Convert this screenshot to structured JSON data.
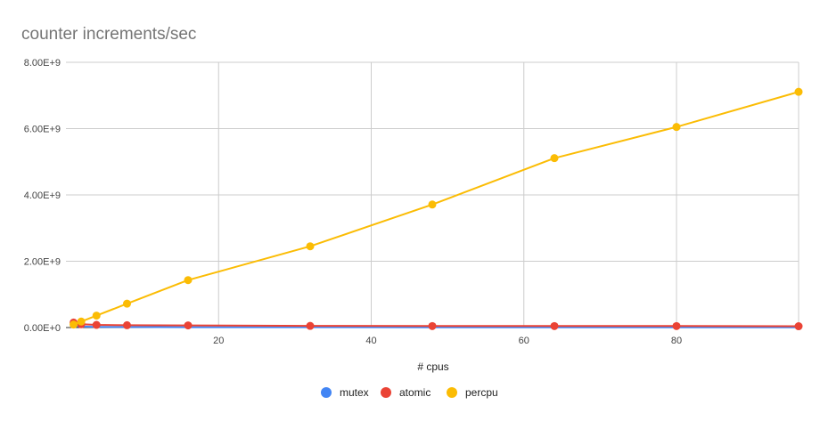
{
  "chart_data": {
    "type": "line",
    "title": "counter increments/sec",
    "xlabel": "# cpus",
    "ylabel": "",
    "xlim": [
      0,
      96
    ],
    "ylim": [
      0,
      8000000000
    ],
    "x_ticks": [
      {
        "value": 20,
        "label": "20"
      },
      {
        "value": 40,
        "label": "40"
      },
      {
        "value": 60,
        "label": "60"
      },
      {
        "value": 80,
        "label": "80"
      }
    ],
    "y_ticks": [
      {
        "value": 0,
        "label": "0.00E+0"
      },
      {
        "value": 2000000000,
        "label": "2.00E+9"
      },
      {
        "value": 4000000000,
        "label": "4.00E+9"
      },
      {
        "value": 6000000000,
        "label": "6.00E+9"
      },
      {
        "value": 8000000000,
        "label": "8.00E+9"
      }
    ],
    "grid": true,
    "legend_position": "bottom",
    "series": [
      {
        "name": "mutex",
        "color": "#4285F4",
        "markers": false,
        "x": [
          1,
          2,
          4,
          8,
          16,
          32,
          48,
          64,
          80,
          96
        ],
        "y": [
          50000000,
          30000000,
          20000000,
          15000000,
          12000000,
          10000000,
          9000000,
          8000000,
          8000000,
          7000000
        ]
      },
      {
        "name": "atomic",
        "color": "#EA4335",
        "markers": true,
        "x": [
          1,
          2,
          4,
          8,
          16,
          32,
          48,
          64,
          80,
          96
        ],
        "y": [
          150000000,
          100000000,
          80000000,
          70000000,
          65000000,
          50000000,
          45000000,
          45000000,
          45000000,
          40000000
        ]
      },
      {
        "name": "percpu",
        "color": "#FBBC04",
        "markers": true,
        "x": [
          1,
          2,
          4,
          8,
          16,
          32,
          48,
          64,
          80,
          96
        ],
        "y": [
          90000000,
          180000000,
          360000000,
          720000000,
          1430000000,
          2450000000,
          3710000000,
          5110000000,
          6050000000,
          7110000000
        ]
      }
    ]
  }
}
